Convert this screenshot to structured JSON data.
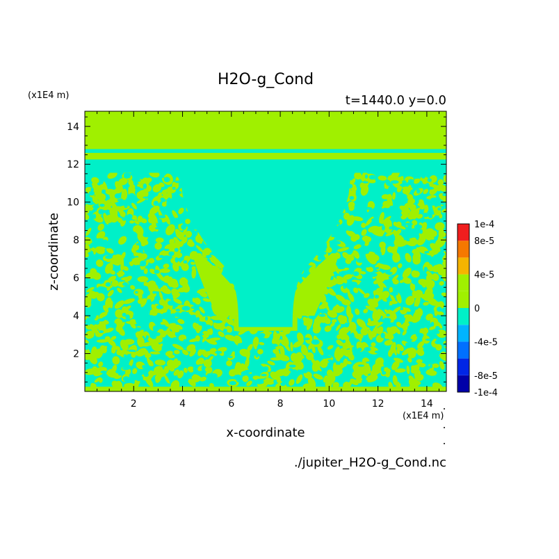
{
  "chart_data": {
    "type": "heatmap",
    "title": "H2O-g_Cond",
    "subtitle": "t=1440.0 y=0.0",
    "xlabel": "x-coordinate",
    "ylabel": "z-coordinate",
    "x_unit": "(x1E4 m)",
    "z_unit": "(x1E4 m)",
    "source_file": "./jupiter_H2O-g_Cond.nc",
    "xlim": [
      0,
      14.8
    ],
    "ylim": [
      0,
      14.8
    ],
    "xticks": [
      "2",
      "4",
      "6",
      "8",
      "10",
      "12",
      "14"
    ],
    "yticks": [
      "2",
      "4",
      "6",
      "8",
      "10",
      "12",
      "14"
    ],
    "colorbar": {
      "labels": [
        "1e-4",
        "8e-5",
        "4e-5",
        "0",
        "-4e-5",
        "-8e-5",
        "-1e-4"
      ],
      "label_values": [
        0.0001,
        8e-05,
        4e-05,
        0,
        -4e-05,
        -8e-05,
        -0.0001
      ],
      "levels": [
        {
          "min": -0.0001,
          "max": -8e-05,
          "color": "#0000a8"
        },
        {
          "min": -8e-05,
          "max": -6e-05,
          "color": "#0026e6"
        },
        {
          "min": -6e-05,
          "max": -4e-05,
          "color": "#0070ff"
        },
        {
          "min": -4e-05,
          "max": -2e-05,
          "color": "#00b4ff"
        },
        {
          "min": -2e-05,
          "max": 0,
          "color": "#00f0c8"
        },
        {
          "min": 0,
          "max": 2e-05,
          "color": "#a0f000"
        },
        {
          "min": 2e-05,
          "max": 4e-05,
          "color": "#a0f000"
        },
        {
          "min": 4e-05,
          "max": 6e-05,
          "color": "#f5b400"
        },
        {
          "min": 6e-05,
          "max": 8e-05,
          "color": "#f57800"
        },
        {
          "min": 8e-05,
          "max": 0.0001,
          "color": "#f01e1e"
        }
      ]
    },
    "field_colors": {
      "zero_to_positive": "#a0f000",
      "small_negative": "#00f0c8"
    },
    "structure": {
      "top_layer": {
        "z_from": 12.8,
        "z_to": 14.8,
        "level": "zero_to_positive"
      },
      "band": {
        "z_from": 12.25,
        "z_to": 12.6,
        "level": "zero_to_positive"
      },
      "upper_gap": {
        "z_from": 11.6,
        "z_to": 12.25,
        "level": "small_negative"
      },
      "plume": {
        "x_center": 7.4,
        "level": "small_negative"
      },
      "noise_region": {
        "z_from": 0.25,
        "z_to": 11.5,
        "levels": [
          "zero_to_positive",
          "small_negative"
        ]
      }
    }
  }
}
